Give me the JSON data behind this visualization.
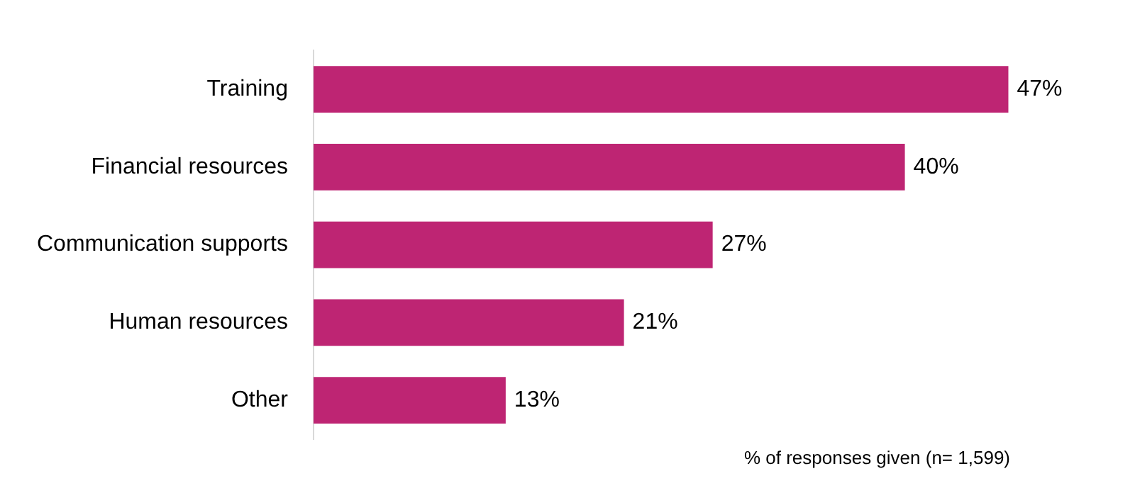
{
  "chart_data": {
    "type": "bar",
    "orientation": "horizontal",
    "categories": [
      "Training",
      "Financial resources",
      "Communication supports",
      "Human resources",
      "Other"
    ],
    "values": [
      47,
      40,
      27,
      21,
      13
    ],
    "value_labels": [
      "47%",
      "40%",
      "27%",
      "21%",
      "13%"
    ],
    "color": "#be2573",
    "tick_labels": "y",
    "grid": false,
    "legend": false,
    "annotations": [
      "% of responses given (n= 1,599)"
    ]
  }
}
